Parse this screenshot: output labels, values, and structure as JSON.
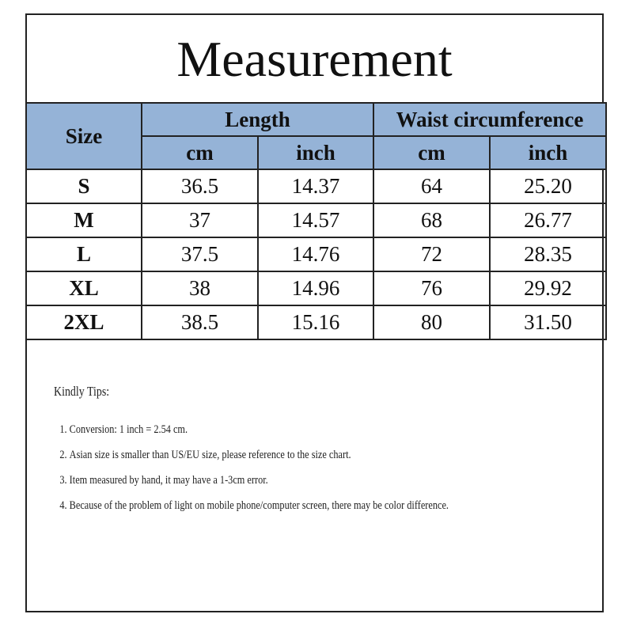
{
  "title": "Measurement",
  "header": {
    "size": "Size",
    "length": "Length",
    "waist": "Waist circumference",
    "units": [
      "cm",
      "inch",
      "cm",
      "inch"
    ]
  },
  "header_color": "#95b3d7",
  "rows": [
    {
      "size": "S",
      "length_cm": "36.5",
      "length_inch": "14.37",
      "waist_cm": "64",
      "waist_inch": "25.20"
    },
    {
      "size": "M",
      "length_cm": "37",
      "length_inch": "14.57",
      "waist_cm": "68",
      "waist_inch": "26.77"
    },
    {
      "size": "L",
      "length_cm": "37.5",
      "length_inch": "14.76",
      "waist_cm": "72",
      "waist_inch": "28.35"
    },
    {
      "size": "XL",
      "length_cm": "38",
      "length_inch": "14.96",
      "waist_cm": "76",
      "waist_inch": "29.92"
    },
    {
      "size": "2XL",
      "length_cm": "38.5",
      "length_inch": "15.16",
      "waist_cm": "80",
      "waist_inch": "31.50"
    }
  ],
  "tips": {
    "heading": "Kindly Tips:",
    "items": [
      "Conversion: 1 inch = 2.54 cm.",
      "Asian size is smaller than US/EU size, please reference to the size chart.",
      "Item measured by hand, it may have a 1-3cm error.",
      "Because of the problem of light on mobile phone/computer screen, there may be color difference."
    ]
  }
}
